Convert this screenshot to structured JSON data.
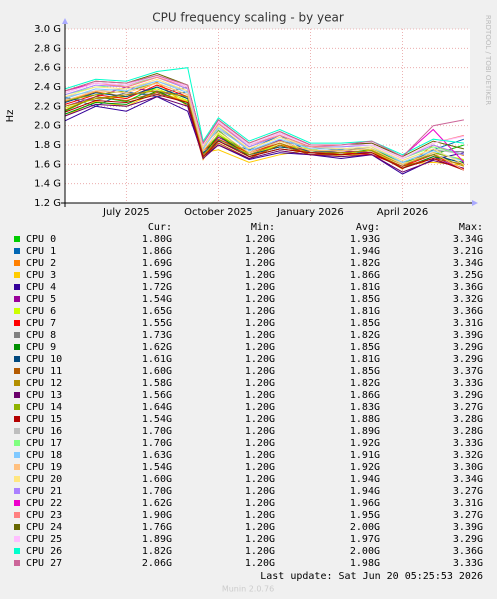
{
  "chart_data": {
    "type": "line",
    "title": "CPU frequency scaling - by year",
    "y_label": "Hz",
    "side_label": "RRDTOOL / TOBI OETIKER",
    "x": [
      0,
      1,
      2,
      3,
      4,
      4.5,
      5,
      6,
      7,
      8,
      9,
      10,
      11,
      12,
      13
    ],
    "xlim": [
      0,
      13.2
    ],
    "xticks": [
      {
        "value": 2,
        "label": "July 2025"
      },
      {
        "value": 5,
        "label": "October 2025"
      },
      {
        "value": 8,
        "label": "January 2026"
      },
      {
        "value": 11,
        "label": "April 2026"
      }
    ],
    "ylim": [
      1.2,
      3.0
    ],
    "yticks": [
      {
        "value": 1.2,
        "label": "1.2 G"
      },
      {
        "value": 1.4,
        "label": "1.4 G"
      },
      {
        "value": 1.6,
        "label": "1.6 G"
      },
      {
        "value": 1.8,
        "label": "1.8 G"
      },
      {
        "value": 2.0,
        "label": "2.0 G"
      },
      {
        "value": 2.2,
        "label": "2.2 G"
      },
      {
        "value": 2.4,
        "label": "2.4 G"
      },
      {
        "value": 2.6,
        "label": "2.6 G"
      },
      {
        "value": 2.8,
        "label": "2.8 G"
      },
      {
        "value": 3.0,
        "label": "3.0 G"
      }
    ],
    "grid": true,
    "legend_headers": [
      "Cur:",
      "Min:",
      "Avg:",
      "Max:"
    ],
    "series": [
      {
        "name": "CPU 0",
        "color": "#00CC00",
        "values": [
          2.15,
          2.3,
          2.25,
          2.4,
          2.28,
          1.8,
          1.95,
          1.7,
          1.78,
          1.74,
          1.7,
          1.76,
          1.62,
          1.7,
          1.8
        ],
        "cur": "1.80G",
        "min": "1.20G",
        "avg": "1.93G",
        "max": "3.34G"
      },
      {
        "name": "CPU 1",
        "color": "#0066B3",
        "values": [
          2.3,
          2.2,
          2.35,
          2.3,
          2.35,
          1.7,
          1.85,
          1.75,
          1.9,
          1.72,
          1.75,
          1.7,
          1.58,
          1.75,
          1.86
        ],
        "cur": "1.86G",
        "min": "1.20G",
        "avg": "1.94G",
        "max": "3.21G"
      },
      {
        "name": "CPU 2",
        "color": "#FF8000",
        "values": [
          2.25,
          2.35,
          2.3,
          2.45,
          2.2,
          1.65,
          1.9,
          1.68,
          1.8,
          1.7,
          1.72,
          1.74,
          1.55,
          1.8,
          1.69
        ],
        "cur": "1.69G",
        "min": "1.20G",
        "avg": "1.82G",
        "max": "3.34G"
      },
      {
        "name": "CPU 3",
        "color": "#FFCC00",
        "values": [
          2.1,
          2.25,
          2.2,
          2.35,
          2.25,
          1.72,
          1.75,
          1.62,
          1.7,
          1.75,
          1.68,
          1.72,
          1.6,
          1.62,
          1.59
        ],
        "cur": "1.59G",
        "min": "1.20G",
        "avg": "1.86G",
        "max": "3.25G"
      },
      {
        "name": "CPU 4",
        "color": "#330099",
        "values": [
          2.05,
          2.2,
          2.15,
          2.3,
          2.15,
          1.68,
          1.8,
          1.65,
          1.72,
          1.7,
          1.66,
          1.7,
          1.5,
          1.65,
          1.72
        ],
        "cur": "1.72G",
        "min": "1.20G",
        "avg": "1.81G",
        "max": "3.36G"
      },
      {
        "name": "CPU 5",
        "color": "#990099",
        "values": [
          2.2,
          2.3,
          2.4,
          2.35,
          2.3,
          1.7,
          1.88,
          1.72,
          1.85,
          1.72,
          1.74,
          1.72,
          1.56,
          1.68,
          1.54
        ],
        "cur": "1.54G",
        "min": "1.20G",
        "avg": "1.85G",
        "max": "3.32G"
      },
      {
        "name": "CPU 6",
        "color": "#CCFF00",
        "values": [
          2.18,
          2.28,
          2.3,
          2.38,
          2.26,
          1.66,
          1.92,
          1.7,
          1.8,
          1.76,
          1.7,
          1.75,
          1.6,
          1.72,
          1.65
        ],
        "cur": "1.65G",
        "min": "1.20G",
        "avg": "1.81G",
        "max": "3.36G"
      },
      {
        "name": "CPU 7",
        "color": "#FF0000",
        "values": [
          2.22,
          2.32,
          2.28,
          2.42,
          2.3,
          1.74,
          1.86,
          1.72,
          1.82,
          1.7,
          1.72,
          1.7,
          1.58,
          1.7,
          1.55
        ],
        "cur": "1.55G",
        "min": "1.20G",
        "avg": "1.85G",
        "max": "3.31G"
      },
      {
        "name": "CPU 8",
        "color": "#808080",
        "values": [
          2.28,
          2.26,
          2.34,
          2.32,
          2.4,
          1.76,
          2.0,
          1.74,
          1.84,
          1.78,
          1.74,
          1.78,
          1.62,
          1.74,
          1.73
        ],
        "cur": "1.73G",
        "min": "1.20G",
        "avg": "1.82G",
        "max": "3.39G"
      },
      {
        "name": "CPU 9",
        "color": "#008F00",
        "values": [
          2.12,
          2.24,
          2.22,
          2.36,
          2.22,
          1.7,
          1.9,
          1.68,
          1.76,
          1.72,
          1.7,
          1.72,
          1.56,
          1.68,
          1.62
        ],
        "cur": "1.62G",
        "min": "1.20G",
        "avg": "1.85G",
        "max": "3.29G"
      },
      {
        "name": "CPU 10",
        "color": "#00487D",
        "values": [
          2.24,
          2.34,
          2.3,
          2.4,
          2.28,
          1.72,
          1.84,
          1.7,
          1.78,
          1.74,
          1.72,
          1.74,
          1.6,
          1.7,
          1.61
        ],
        "cur": "1.61G",
        "min": "1.20G",
        "avg": "1.81G",
        "max": "3.29G"
      },
      {
        "name": "CPU 11",
        "color": "#B35A00",
        "values": [
          2.16,
          2.3,
          2.26,
          2.34,
          2.24,
          1.68,
          1.82,
          1.66,
          1.8,
          1.7,
          1.7,
          1.72,
          1.58,
          1.66,
          1.6
        ],
        "cur": "1.60G",
        "min": "1.20G",
        "avg": "1.85G",
        "max": "3.37G"
      },
      {
        "name": "CPU 12",
        "color": "#B38F00",
        "values": [
          2.2,
          2.28,
          2.32,
          2.36,
          2.3,
          1.7,
          1.86,
          1.7,
          1.82,
          1.72,
          1.72,
          1.74,
          1.6,
          1.7,
          1.58
        ],
        "cur": "1.58G",
        "min": "1.20G",
        "avg": "1.82G",
        "max": "3.33G"
      },
      {
        "name": "CPU 13",
        "color": "#6B006B",
        "values": [
          2.1,
          2.22,
          2.2,
          2.3,
          2.2,
          1.66,
          1.8,
          1.66,
          1.74,
          1.7,
          1.68,
          1.7,
          1.52,
          1.64,
          1.56
        ],
        "cur": "1.56G",
        "min": "1.20G",
        "avg": "1.86G",
        "max": "3.29G"
      },
      {
        "name": "CPU 14",
        "color": "#8FB300",
        "values": [
          2.26,
          2.32,
          2.36,
          2.44,
          2.32,
          1.74,
          1.9,
          1.72,
          1.84,
          1.74,
          1.74,
          1.76,
          1.6,
          1.72,
          1.64
        ],
        "cur": "1.64G",
        "min": "1.20G",
        "avg": "1.83G",
        "max": "3.27G"
      },
      {
        "name": "CPU 15",
        "color": "#B30000",
        "values": [
          2.14,
          2.26,
          2.24,
          2.32,
          2.24,
          1.68,
          1.84,
          1.68,
          1.76,
          1.72,
          1.7,
          1.72,
          1.56,
          1.66,
          1.54
        ],
        "cur": "1.54G",
        "min": "1.20G",
        "avg": "1.88G",
        "max": "3.28G"
      },
      {
        "name": "CPU 16",
        "color": "#BEBEBE",
        "values": [
          2.3,
          2.36,
          2.38,
          2.46,
          2.36,
          1.78,
          1.96,
          1.76,
          1.88,
          1.76,
          1.76,
          1.78,
          1.64,
          1.76,
          1.7
        ],
        "cur": "1.70G",
        "min": "1.20G",
        "avg": "1.89G",
        "max": "3.28G"
      },
      {
        "name": "CPU 17",
        "color": "#80FF80",
        "values": [
          2.32,
          2.4,
          2.42,
          2.5,
          2.38,
          1.8,
          2.02,
          1.78,
          1.9,
          1.78,
          1.78,
          1.8,
          1.66,
          1.78,
          1.7
        ],
        "cur": "1.70G",
        "min": "1.20G",
        "avg": "1.92G",
        "max": "3.33G"
      },
      {
        "name": "CPU 18",
        "color": "#80C9FF",
        "values": [
          2.28,
          2.38,
          2.36,
          2.46,
          2.34,
          1.76,
          1.98,
          1.74,
          1.86,
          1.76,
          1.76,
          1.78,
          1.62,
          1.74,
          1.63
        ],
        "cur": "1.63G",
        "min": "1.20G",
        "avg": "1.91G",
        "max": "3.32G"
      },
      {
        "name": "CPU 19",
        "color": "#FFC080",
        "values": [
          2.26,
          2.36,
          2.34,
          2.44,
          2.32,
          1.74,
          1.94,
          1.72,
          1.84,
          1.74,
          1.74,
          1.76,
          1.6,
          1.72,
          1.54
        ],
        "cur": "1.54G",
        "min": "1.20G",
        "avg": "1.92G",
        "max": "3.30G"
      },
      {
        "name": "CPU 20",
        "color": "#FFE680",
        "values": [
          2.3,
          2.4,
          2.38,
          2.48,
          2.36,
          1.78,
          2.0,
          1.76,
          1.88,
          1.78,
          1.76,
          1.78,
          1.64,
          1.76,
          1.6
        ],
        "cur": "1.60G",
        "min": "1.20G",
        "avg": "1.94G",
        "max": "3.34G"
      },
      {
        "name": "CPU 21",
        "color": "#AA80FF",
        "values": [
          2.32,
          2.42,
          2.4,
          2.5,
          2.38,
          1.8,
          2.02,
          1.78,
          1.9,
          1.78,
          1.78,
          1.8,
          1.66,
          1.8,
          1.7
        ],
        "cur": "1.70G",
        "min": "1.20G",
        "avg": "1.94G",
        "max": "3.27G"
      },
      {
        "name": "CPU 22",
        "color": "#EE00CC",
        "values": [
          2.36,
          2.44,
          2.42,
          2.52,
          2.4,
          1.82,
          2.04,
          1.8,
          1.92,
          1.8,
          1.8,
          1.82,
          1.68,
          1.96,
          1.62
        ],
        "cur": "1.62G",
        "min": "1.20G",
        "avg": "1.96G",
        "max": "3.31G"
      },
      {
        "name": "CPU 23",
        "color": "#FF8080",
        "values": [
          2.34,
          2.44,
          2.4,
          2.5,
          2.4,
          1.8,
          2.02,
          1.8,
          1.9,
          1.78,
          1.8,
          1.8,
          1.66,
          1.82,
          1.9
        ],
        "cur": "1.90G",
        "min": "1.20G",
        "avg": "1.95G",
        "max": "3.27G"
      },
      {
        "name": "CPU 24",
        "color": "#666600",
        "values": [
          2.36,
          2.46,
          2.44,
          2.54,
          2.42,
          1.82,
          2.06,
          1.82,
          1.94,
          1.8,
          1.8,
          1.82,
          1.68,
          1.84,
          1.76
        ],
        "cur": "1.76G",
        "min": "1.20G",
        "avg": "2.00G",
        "max": "3.39G"
      },
      {
        "name": "CPU 25",
        "color": "#FFBFFF",
        "values": [
          2.34,
          2.44,
          2.42,
          2.52,
          2.4,
          1.8,
          2.04,
          1.8,
          1.92,
          1.8,
          1.8,
          1.8,
          1.66,
          1.82,
          1.89
        ],
        "cur": "1.89G",
        "min": "1.20G",
        "avg": "1.97G",
        "max": "3.29G"
      },
      {
        "name": "CPU 26",
        "color": "#00FFCC",
        "values": [
          2.38,
          2.48,
          2.46,
          2.56,
          2.6,
          1.84,
          2.08,
          1.84,
          1.96,
          1.82,
          1.82,
          1.84,
          1.7,
          1.86,
          1.82
        ],
        "cur": "1.82G",
        "min": "1.20G",
        "avg": "2.00G",
        "max": "3.36G"
      },
      {
        "name": "CPU 27",
        "color": "#CC6699",
        "values": [
          2.36,
          2.46,
          2.44,
          2.52,
          2.42,
          1.82,
          2.06,
          1.82,
          1.94,
          1.8,
          1.8,
          1.84,
          1.68,
          2.0,
          2.06
        ],
        "cur": "2.06G",
        "min": "1.20G",
        "avg": "1.98G",
        "max": "3.33G"
      }
    ],
    "last_update": "Last update: Sat Jun 20 05:25:53 2026",
    "footer": "Munin 2.0.76"
  }
}
